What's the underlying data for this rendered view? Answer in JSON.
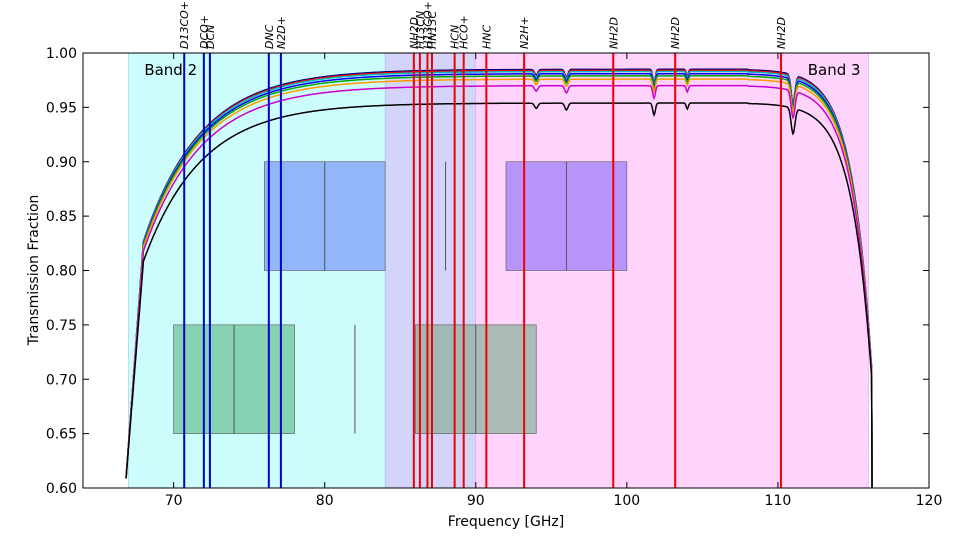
{
  "chart_data": {
    "type": "line",
    "xlabel": "Frequency [GHz]",
    "ylabel": "Transmission Fraction",
    "xlim": [
      64,
      120
    ],
    "ylim": [
      0.6,
      1.0
    ],
    "x_ticks": [
      70,
      80,
      90,
      100,
      110,
      120
    ],
    "y_ticks": [
      0.6,
      0.65,
      0.7,
      0.75,
      0.8,
      0.85,
      0.9,
      0.95,
      1.0
    ],
    "grid": false,
    "bands": [
      {
        "label": "Band 2",
        "x_range": [
          67,
          84
        ],
        "color": "#ccfcfc"
      },
      {
        "label": "",
        "x_range": [
          84,
          90
        ],
        "color": "#d4d4fa"
      },
      {
        "label": "Band 3",
        "x_range": [
          90,
          116
        ],
        "color": "#ffd4fc"
      }
    ],
    "spectral_windows": [
      {
        "x_range": [
          76,
          84
        ],
        "y_range": [
          0.8,
          0.9
        ],
        "color": "#7f9ffa",
        "dividers": [
          80
        ],
        "markers": [
          88
        ]
      },
      {
        "x_range": [
          92,
          100
        ],
        "y_range": [
          0.8,
          0.9
        ],
        "color": "#9f7ffa",
        "dividers": [
          96
        ],
        "markers": []
      },
      {
        "x_range": [
          70,
          78
        ],
        "y_range": [
          0.65,
          0.75
        ],
        "color": "#6fc49a",
        "dividers": [
          74
        ],
        "markers": [
          82
        ]
      },
      {
        "x_range": [
          86,
          94
        ],
        "y_range": [
          0.65,
          0.75
        ],
        "color": "#8fb3a0",
        "dividers": [
          90
        ],
        "markers": []
      }
    ],
    "spectral_lines": [
      {
        "label": "D13CO+",
        "x": 70.7,
        "color": "#0000cc"
      },
      {
        "label": "DCO+",
        "x": 72.0,
        "color": "#0000cc"
      },
      {
        "label": "DCN",
        "x": 72.4,
        "color": "#0000cc"
      },
      {
        "label": "DNC",
        "x": 76.3,
        "color": "#0000cc"
      },
      {
        "label": "N2D+",
        "x": 77.1,
        "color": "#0000cc"
      },
      {
        "label": "NH2D",
        "x": 85.9,
        "color": "#ee0000"
      },
      {
        "label": "H13CN",
        "x": 86.3,
        "color": "#ee0000"
      },
      {
        "label": "H13CO+",
        "x": 86.8,
        "color": "#ee0000"
      },
      {
        "label": "HN13C",
        "x": 87.1,
        "color": "#ee0000"
      },
      {
        "label": "HCN",
        "x": 88.6,
        "color": "#ee0000"
      },
      {
        "label": "HCO+",
        "x": 89.2,
        "color": "#ee0000"
      },
      {
        "label": "HNC",
        "x": 90.7,
        "color": "#ee0000"
      },
      {
        "label": "N2H+",
        "x": 93.2,
        "color": "#ee0000"
      },
      {
        "label": "NH2D",
        "x": 99.1,
        "color": "#ee0000"
      },
      {
        "label": "NH2D",
        "x": 103.2,
        "color": "#ee0000"
      },
      {
        "label": "NH2D",
        "x": 110.2,
        "color": "#ee0000"
      }
    ],
    "series": [
      {
        "color": "#000080",
        "plateau": 0.985
      },
      {
        "color": "#ff0000",
        "plateau": 0.984
      },
      {
        "color": "#00bfbf",
        "plateau": 0.983
      },
      {
        "color": "#0000ff",
        "plateau": 0.981
      },
      {
        "color": "#00aa00",
        "plateau": 0.979
      },
      {
        "color": "#ff9900",
        "plateau": 0.976
      },
      {
        "color": "#cc00cc",
        "plateau": 0.97
      },
      {
        "color": "#000000",
        "plateau": 0.954
      }
    ]
  }
}
